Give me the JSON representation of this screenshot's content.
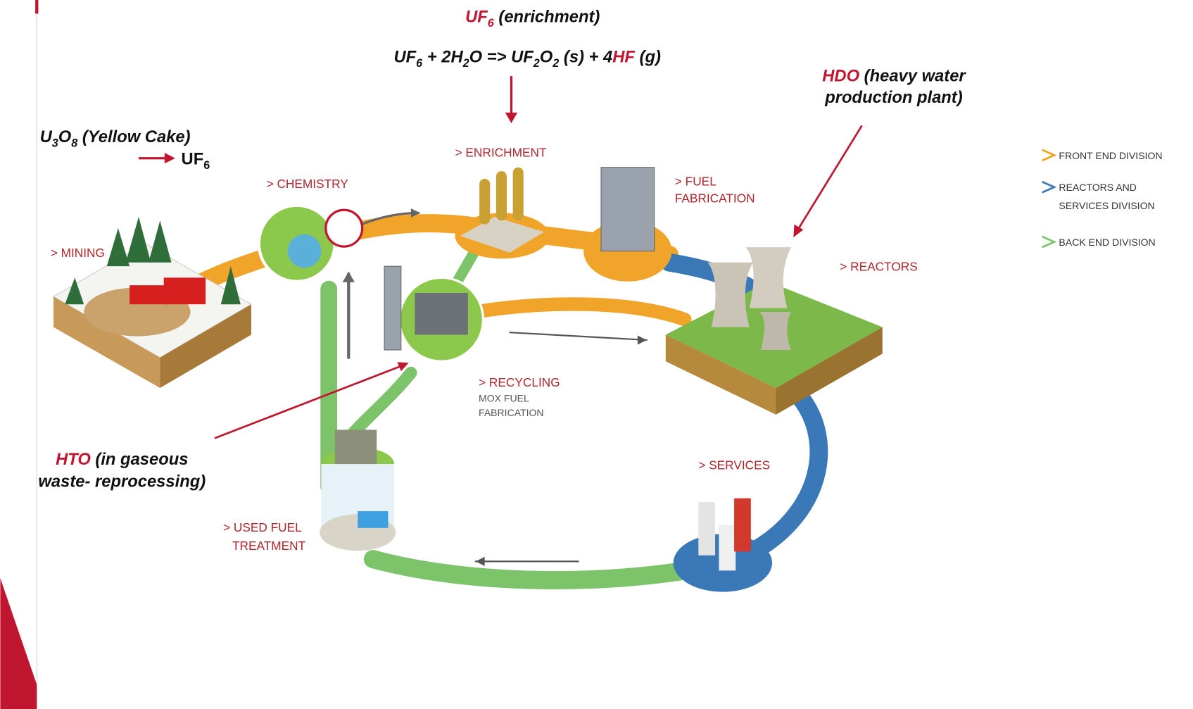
{
  "annotations": {
    "enrichment": {
      "title": [
        "UF",
        "6",
        " (enrichment)"
      ],
      "equation": [
        "UF",
        "6",
        " + 2H",
        "2",
        "O => UF",
        "2",
        "O",
        "2",
        " (s) + 4",
        "HF",
        " (g)"
      ]
    },
    "heavy_water": {
      "highlight": "HDO",
      "lines": [
        " (heavy water",
        "production plant)"
      ]
    },
    "yellow_cake": {
      "source": [
        "U",
        "3",
        "O",
        "8",
        " (Yellow Cake)"
      ],
      "product": [
        "UF",
        "6"
      ]
    },
    "tritium": {
      "highlight": "HTO",
      "lines": [
        " (in gaseous",
        "waste- reprocessing)"
      ]
    }
  },
  "stations": [
    {
      "lines": [
        "> MINING"
      ]
    },
    {
      "lines": [
        "> CHEMISTRY"
      ]
    },
    {
      "lines": [
        "> ENRICHMENT"
      ]
    },
    {
      "lines": [
        "> FUEL",
        "FABRICATION"
      ]
    },
    {
      "lines": [
        "> REACTORS"
      ]
    },
    {
      "lines": [
        "> RECYCLING"
      ],
      "sub": [
        "MOX FUEL",
        "FABRICATION"
      ]
    },
    {
      "lines": [
        "> SERVICES"
      ]
    },
    {
      "lines": [
        "> USED FUEL",
        "TREATMENT"
      ]
    }
  ],
  "legend": [
    {
      "lines": [
        "FRONT END DIVISION"
      ],
      "color": "#f2a31b"
    },
    {
      "lines": [
        "REACTORS AND",
        "SERVICES DIVISION"
      ],
      "color": "#3a78b8"
    },
    {
      "lines": [
        "BACK END DIVISION"
      ],
      "color": "#7cc36a"
    }
  ]
}
